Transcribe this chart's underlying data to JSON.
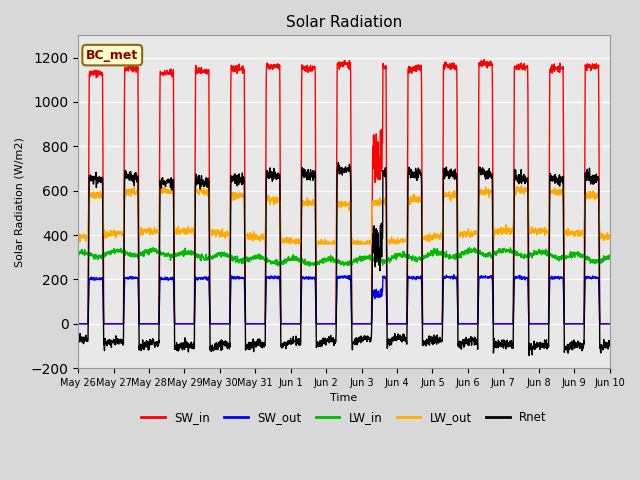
{
  "title": "Solar Radiation",
  "ylabel": "Solar Radiation (W/m2)",
  "xlabel": "Time",
  "annotation": "BC_met",
  "ylim": [
    -200,
    1300
  ],
  "yticks": [
    -200,
    0,
    200,
    400,
    600,
    800,
    1000,
    1200
  ],
  "fig_bg": "#d8d8d8",
  "plot_bg": "#e8e8e8",
  "colors": {
    "SW_in": "#ff0000",
    "SW_out": "#0000ff",
    "LW_in": "#00bb00",
    "LW_out": "#ffaa00",
    "Rnet": "#000000"
  },
  "n_days": 15,
  "pts_per_day": 144
}
